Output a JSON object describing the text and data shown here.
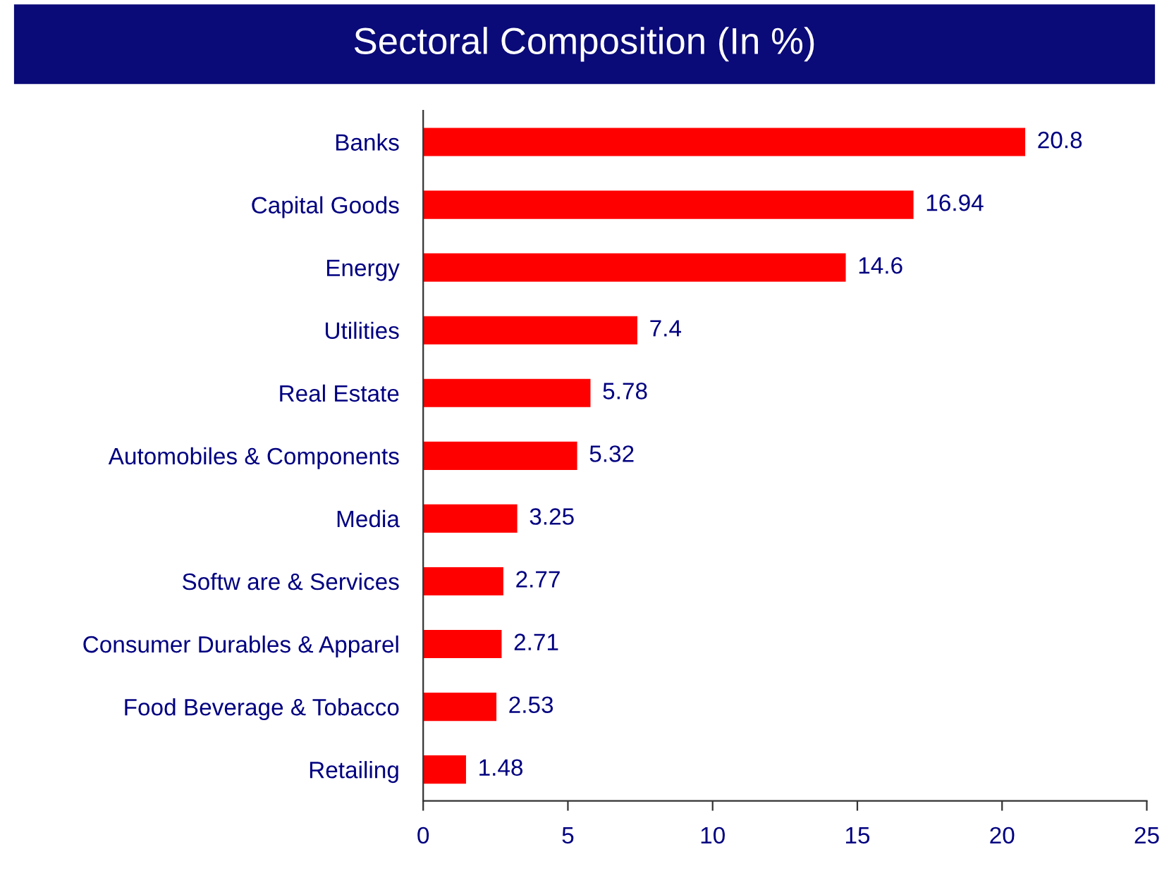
{
  "chart_data": {
    "type": "bar",
    "orientation": "horizontal",
    "title": "Sectoral Composition (In %)",
    "categories": [
      "Banks",
      "Capital Goods",
      "Energy",
      "Utilities",
      "Real Estate",
      "Automobiles & Components",
      "Media",
      "Softw are & Services",
      "Consumer Durables & Apparel",
      "Food Beverage & Tobacco",
      "Retailing"
    ],
    "values": [
      20.8,
      16.94,
      14.6,
      7.4,
      5.78,
      5.32,
      3.25,
      2.77,
      2.71,
      2.53,
      1.48
    ],
    "color": "#ff0000",
    "data_labels": true,
    "grid": false,
    "legend": false,
    "xlim": [
      0,
      25
    ],
    "xticks": [
      0,
      5,
      10,
      15,
      20,
      25
    ]
  }
}
